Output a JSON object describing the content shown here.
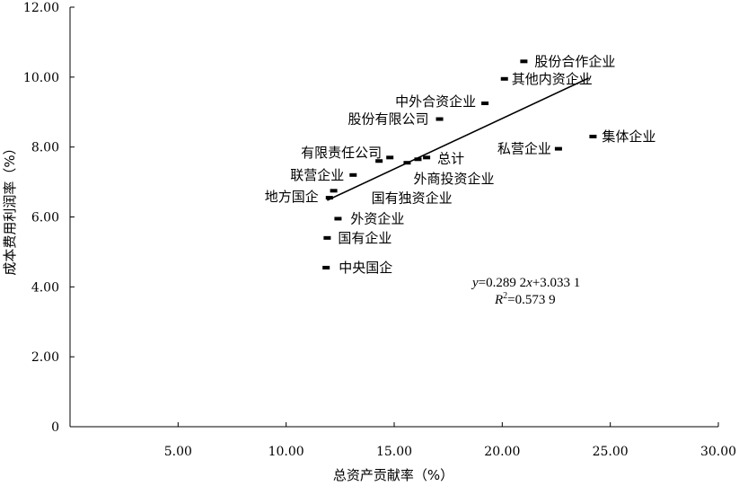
{
  "chart_data": {
    "type": "scatter",
    "xlabel": "总资产贡献率（%）",
    "ylabel": "成本费用利润率（%）",
    "xlim": [
      0,
      30
    ],
    "ylim": [
      0,
      12
    ],
    "xticks": [
      "5.00",
      "10.00",
      "15.00",
      "20.00",
      "25.00",
      "30.00"
    ],
    "yticks": [
      "0",
      "2.00",
      "4.00",
      "6.00",
      "8.00",
      "10.00",
      "12.00"
    ],
    "points": [
      {
        "label": "股份合作企业",
        "x": 21.0,
        "y": 10.45
      },
      {
        "label": "其他内资企业",
        "x": 20.1,
        "y": 9.95
      },
      {
        "label": "中外合资企业",
        "x": 19.2,
        "y": 9.25
      },
      {
        "label": "股份有限公司",
        "x": 17.1,
        "y": 8.8
      },
      {
        "label": "集体企业",
        "x": 24.2,
        "y": 8.3
      },
      {
        "label": "私营企业",
        "x": 22.6,
        "y": 7.95
      },
      {
        "label": "有限责任公司",
        "x": 14.3,
        "y": 7.6
      },
      {
        "label": "",
        "x": 14.8,
        "y": 7.7
      },
      {
        "label": "总计",
        "x": 16.5,
        "y": 7.7
      },
      {
        "label": "",
        "x": 16.1,
        "y": 7.65
      },
      {
        "label": "外商投资企业",
        "x": 15.6,
        "y": 7.55
      },
      {
        "label": "联营企业",
        "x": 13.1,
        "y": 7.2
      },
      {
        "label": "国有独资企业",
        "x": 12.2,
        "y": 6.75
      },
      {
        "label": "地方国企",
        "x": 12.0,
        "y": 6.55
      },
      {
        "label": "外资企业",
        "x": 12.4,
        "y": 5.95
      },
      {
        "label": "国有企业",
        "x": 11.9,
        "y": 5.4
      },
      {
        "label": "中央国企",
        "x": 11.85,
        "y": 4.55
      }
    ],
    "trendline": {
      "slope": 0.2892,
      "intercept": 3.0331,
      "x_range": [
        11.9,
        24.0
      ]
    },
    "equation": {
      "y_var": "y",
      "eq_rest": "=0.289 2",
      "x_var": "x",
      "eq_tail": "+3.033 1",
      "r_var": "R",
      "r_sup": "2",
      "r_rest": "=0.573 9"
    }
  }
}
